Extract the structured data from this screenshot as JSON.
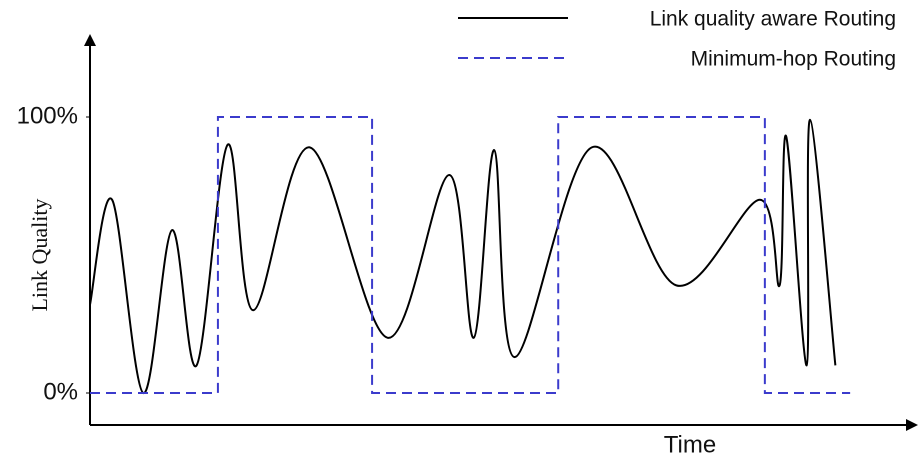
{
  "chart_data": {
    "type": "line",
    "xlabel": "Time",
    "ylabel": "Link Quality",
    "xlim": [
      0,
      100
    ],
    "ylim": [
      0,
      100
    ],
    "yticks": [
      {
        "value": 0,
        "label": "0%"
      },
      {
        "value": 100,
        "label": "100%"
      }
    ],
    "series": [
      {
        "name": "Link quality aware Routing",
        "color": "#000000",
        "style": "solid",
        "smooth": true,
        "x": [
          0,
          2.7,
          6.5,
          10,
          13,
          16.8,
          19.9,
          26.8,
          36.3,
          43.8,
          46.8,
          49.3,
          51.8,
          61.2,
          71.5,
          81.7,
          84.1,
          84.9,
          87.4,
          87.8,
          90.9
        ],
        "values": [
          32,
          70,
          0,
          59,
          10,
          90,
          30,
          89,
          20,
          79,
          20,
          88,
          13,
          89,
          39,
          70,
          39,
          93,
          10,
          99,
          10
        ]
      },
      {
        "name": "Minimum-hop Routing",
        "color": "#3b3bcc",
        "style": "dashed",
        "smooth": false,
        "x": [
          0,
          15.6,
          15.6,
          34.4,
          34.4,
          57.1,
          57.1,
          82.3,
          82.3,
          92.7
        ],
        "values": [
          0,
          0,
          100,
          100,
          0,
          0,
          100,
          100,
          0,
          0
        ]
      }
    ]
  }
}
